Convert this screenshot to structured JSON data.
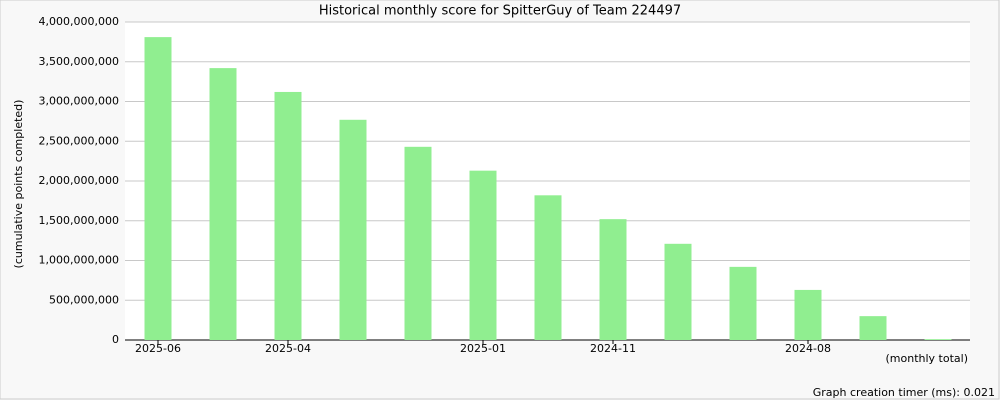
{
  "chart_data": {
    "type": "bar",
    "title": "Historical monthly score for SpitterGuy of Team 224497",
    "y_label": "(cumulative points completed)",
    "x_label": "(monthly total)",
    "footer": "Graph creation timer (ms): 0.021",
    "categories": [
      "2025-06",
      null,
      "2025-04",
      null,
      null,
      "2025-01",
      null,
      "2024-11",
      null,
      null,
      "2024-08",
      null,
      null
    ],
    "values": [
      3810000000,
      3420000000,
      3120000000,
      2770000000,
      2430000000,
      2130000000,
      1820000000,
      1520000000,
      1210000000,
      920000000,
      630000000,
      300000000,
      10000000
    ],
    "color": "#90ee90",
    "ylim": [
      0,
      4000000000
    ],
    "yticks": [
      0,
      {
        "value": 500000000,
        "label": "500,000,000"
      },
      {
        "value": 1000000000,
        "label": "1,000,000,000"
      },
      {
        "value": 1500000000,
        "label": "1,500,000,000"
      },
      {
        "value": 2000000000,
        "label": "2,000,000,000"
      },
      {
        "value": 2500000000,
        "label": "2,500,000,000"
      },
      {
        "value": 3000000000,
        "label": "3,000,000,000"
      },
      {
        "value": 3500000000,
        "label": "3,500,000,000"
      },
      {
        "value": 4000000000,
        "label": "4,000,000,000"
      }
    ],
    "grid": true
  }
}
